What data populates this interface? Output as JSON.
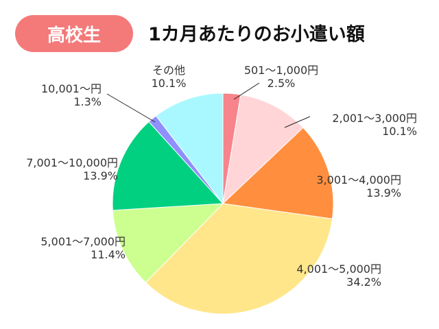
{
  "header": {
    "badge": "高校生",
    "title": "1カ月あたりのお小遣い額"
  },
  "chart_data": {
    "type": "pie",
    "title": "1カ月あたりのお小遣い額",
    "start": "12 o'clock",
    "direction": "clockwise",
    "slices": [
      {
        "label": "501〜1,000円",
        "value": 2.5,
        "display": "2.5%",
        "color": "#f7838b"
      },
      {
        "label": "2,001〜3,000円",
        "value": 10.1,
        "display": "10.1%",
        "color": "#ffd5d8"
      },
      {
        "label": "3,001〜4,000円",
        "value": 13.9,
        "display": "13.9%",
        "color": "#ff8f3e"
      },
      {
        "label": "4,001〜5,000円",
        "value": 34.2,
        "display": "34.2%",
        "color": "#ffe68a"
      },
      {
        "label": "5,001〜7,000円",
        "value": 11.4,
        "display": "11.4%",
        "color": "#ccff8f"
      },
      {
        "label": "7,001〜10,000円",
        "value": 13.9,
        "display": "13.9%",
        "color": "#00d080"
      },
      {
        "label": "10,001〜円",
        "value": 1.3,
        "display": "1.3%",
        "color": "#8f8fff"
      },
      {
        "label": "その他",
        "value": 10.1,
        "display": "10.1%",
        "color": "#aaf8ff"
      }
    ]
  }
}
